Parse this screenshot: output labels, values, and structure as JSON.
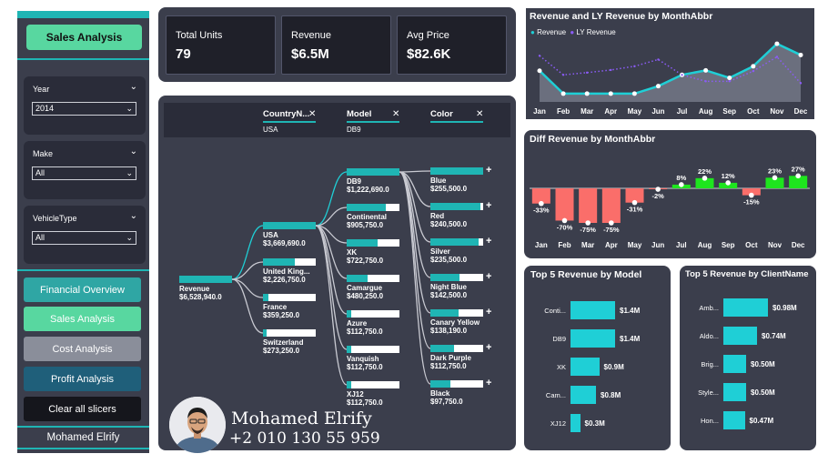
{
  "sidebar": {
    "title": "Sales Analysis",
    "slicers": [
      {
        "label": "Year",
        "value": "2014"
      },
      {
        "label": "Make",
        "value": "All"
      },
      {
        "label": "VehicleType",
        "value": "All"
      }
    ],
    "nav": [
      {
        "label": "Financial Overview",
        "color": "#2fa6a4"
      },
      {
        "label": "Sales Analysis",
        "color": "#58d7a0"
      },
      {
        "label": "Cost Analysis",
        "color": "#8a8e9a"
      },
      {
        "label": "Profit Analysis",
        "color": "#1f5f7a"
      },
      {
        "label": "Clear all slicers",
        "color": "#15161c"
      }
    ],
    "footer": "Mohamed Elrify"
  },
  "kpis": [
    {
      "label": "Total Units",
      "value": "79"
    },
    {
      "label": "Revenue",
      "value": "$6.5M"
    },
    {
      "label": "Avg Price",
      "value": "$82.6K"
    }
  ],
  "decomp": {
    "fields": [
      {
        "name": "CountryN...",
        "selected": "USA"
      },
      {
        "name": "Model",
        "selected": "DB9"
      },
      {
        "name": "Color",
        "selected": ""
      }
    ],
    "root": {
      "name": "Revenue",
      "value": "$6,528,940.0"
    },
    "countries": [
      {
        "name": "USA",
        "value": "$3,669,690.0",
        "frac": 1.0
      },
      {
        "name": "United King...",
        "value": "$2,226,750.0",
        "frac": 0.6
      },
      {
        "name": "France",
        "value": "$359,250.0",
        "frac": 0.1
      },
      {
        "name": "Switzerland",
        "value": "$273,250.0",
        "frac": 0.07
      }
    ],
    "models": [
      {
        "name": "DB9",
        "value": "$1,222,690.0",
        "frac": 1.0
      },
      {
        "name": "Continental",
        "value": "$905,750.0",
        "frac": 0.74
      },
      {
        "name": "XK",
        "value": "$722,750.0",
        "frac": 0.59
      },
      {
        "name": "Camargue",
        "value": "$480,250.0",
        "frac": 0.39
      },
      {
        "name": "Azure",
        "value": "$112,750.0",
        "frac": 0.09
      },
      {
        "name": "Vanquish",
        "value": "$112,750.0",
        "frac": 0.09
      },
      {
        "name": "XJ12",
        "value": "$112,750.0",
        "frac": 0.09
      }
    ],
    "colors": [
      {
        "name": "Blue",
        "value": "$255,500.0",
        "frac": 1.0
      },
      {
        "name": "Red",
        "value": "$240,500.0",
        "frac": 0.94
      },
      {
        "name": "Silver",
        "value": "$235,500.0",
        "frac": 0.92
      },
      {
        "name": "Night Blue",
        "value": "$142,500.0",
        "frac": 0.56
      },
      {
        "name": "Canary Yellow",
        "value": "$138,190.0",
        "frac": 0.54
      },
      {
        "name": "Dark Purple",
        "value": "$112,750.0",
        "frac": 0.44
      },
      {
        "name": "Black",
        "value": "$97,750.0",
        "frac": 0.38
      }
    ]
  },
  "contact": {
    "name": "Mohamed Elrify",
    "phone": "+2 010 130 55 959"
  },
  "revenue_chart": {
    "title": "Revenue and LY Revenue by MonthAbbr",
    "legend": [
      "Revenue",
      "LY Revenue"
    ]
  },
  "diff_chart": {
    "title": "Diff Revenue by MonthAbbr"
  },
  "top_model": {
    "title": "Top 5 Revenue by Model"
  },
  "top_client": {
    "title": "Top 5 Revenue by ClientName"
  },
  "chart_data": [
    {
      "type": "area",
      "title": "Revenue and LY Revenue by MonthAbbr",
      "categories": [
        "Jan",
        "Feb",
        "Mar",
        "Apr",
        "May",
        "Jun",
        "Jul",
        "Aug",
        "Sep",
        "Oct",
        "Nov",
        "Dec"
      ],
      "series": [
        {
          "name": "Revenue",
          "values": [
            0.83,
            0.22,
            0.22,
            0.22,
            0.22,
            0.42,
            0.72,
            0.84,
            0.64,
            0.95,
            1.55,
            1.25
          ],
          "color": "#1fcfd6"
        },
        {
          "name": "LY Revenue",
          "values": [
            1.23,
            0.72,
            0.78,
            0.85,
            0.95,
            1.13,
            0.72,
            0.55,
            0.55,
            0.82,
            1.2,
            0.5
          ],
          "color": "#8b5cf6"
        }
      ]
    },
    {
      "type": "bar",
      "title": "Diff Revenue by MonthAbbr",
      "categories": [
        "Jan",
        "Feb",
        "Mar",
        "Apr",
        "May",
        "Jun",
        "Jul",
        "Aug",
        "Sep",
        "Oct",
        "Nov",
        "Dec"
      ],
      "values": [
        -33,
        -70,
        -75,
        -75,
        -31,
        -2,
        8,
        22,
        12,
        -15,
        23,
        27
      ],
      "labels": [
        "-33%",
        "-70%",
        "-75%",
        "-75%",
        "-31%",
        "-2%",
        "8%",
        "22%",
        "12%",
        "-15%",
        "23%",
        "27%"
      ],
      "pos_color": "#1ee51e",
      "neg_color": "#fa6e6a"
    },
    {
      "type": "bar",
      "title": "Top 5 Revenue by Model",
      "categories": [
        "Conti...",
        "DB9",
        "XK",
        "Cam...",
        "XJ12"
      ],
      "values": [
        1.4,
        1.4,
        0.9,
        0.8,
        0.3
      ],
      "labels": [
        "$1.4M",
        "$1.4M",
        "$0.9M",
        "$0.8M",
        "$0.3M"
      ]
    },
    {
      "type": "bar",
      "title": "Top 5 Revenue by ClientName",
      "categories": [
        "Amb...",
        "Aldo...",
        "Brig...",
        "Style...",
        "Hon..."
      ],
      "values": [
        0.98,
        0.74,
        0.5,
        0.5,
        0.47
      ],
      "labels": [
        "$0.98M",
        "$0.74M",
        "$0.50M",
        "$0.50M",
        "$0.47M"
      ]
    }
  ]
}
